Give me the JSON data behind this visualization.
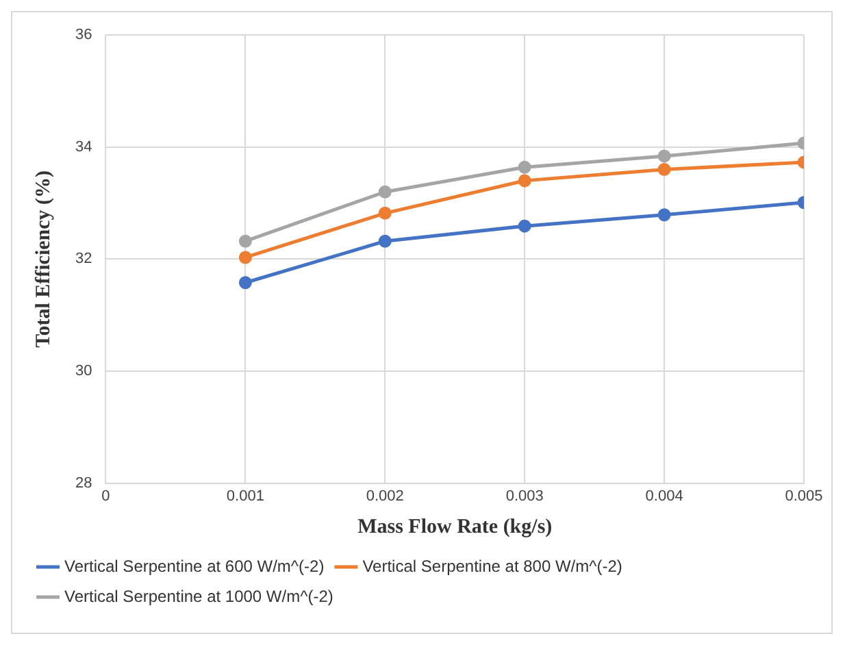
{
  "chart_data": {
    "type": "line",
    "xlabel": "Mass Flow Rate (kg/s)",
    "ylabel": "Total Efficiency (%)",
    "x": [
      0.001,
      0.002,
      0.003,
      0.004,
      0.005
    ],
    "series": [
      {
        "name": "Vertical Serpentine at 600 W/m^(-2)",
        "color": "#4472c4",
        "values": [
          31.58,
          32.32,
          32.59,
          32.79,
          33.01
        ]
      },
      {
        "name": "Vertical Serpentine at 800 W/m^(-2)",
        "color": "#ed7d31",
        "values": [
          32.03,
          32.82,
          33.4,
          33.6,
          33.73
        ]
      },
      {
        "name": "Vertical Serpentine at 1000 W/m^(-2)",
        "color": "#a5a5a5",
        "values": [
          32.32,
          33.2,
          33.64,
          33.84,
          34.07
        ]
      }
    ],
    "xlim": [
      0,
      0.005
    ],
    "xticks": [
      0,
      0.001,
      0.002,
      0.003,
      0.004,
      0.005
    ],
    "ylim": [
      28,
      36
    ],
    "yticks": [
      28,
      30,
      32,
      34,
      36
    ],
    "grid": true,
    "legend": "bottom",
    "marker": "circle",
    "line_style": "solid"
  }
}
